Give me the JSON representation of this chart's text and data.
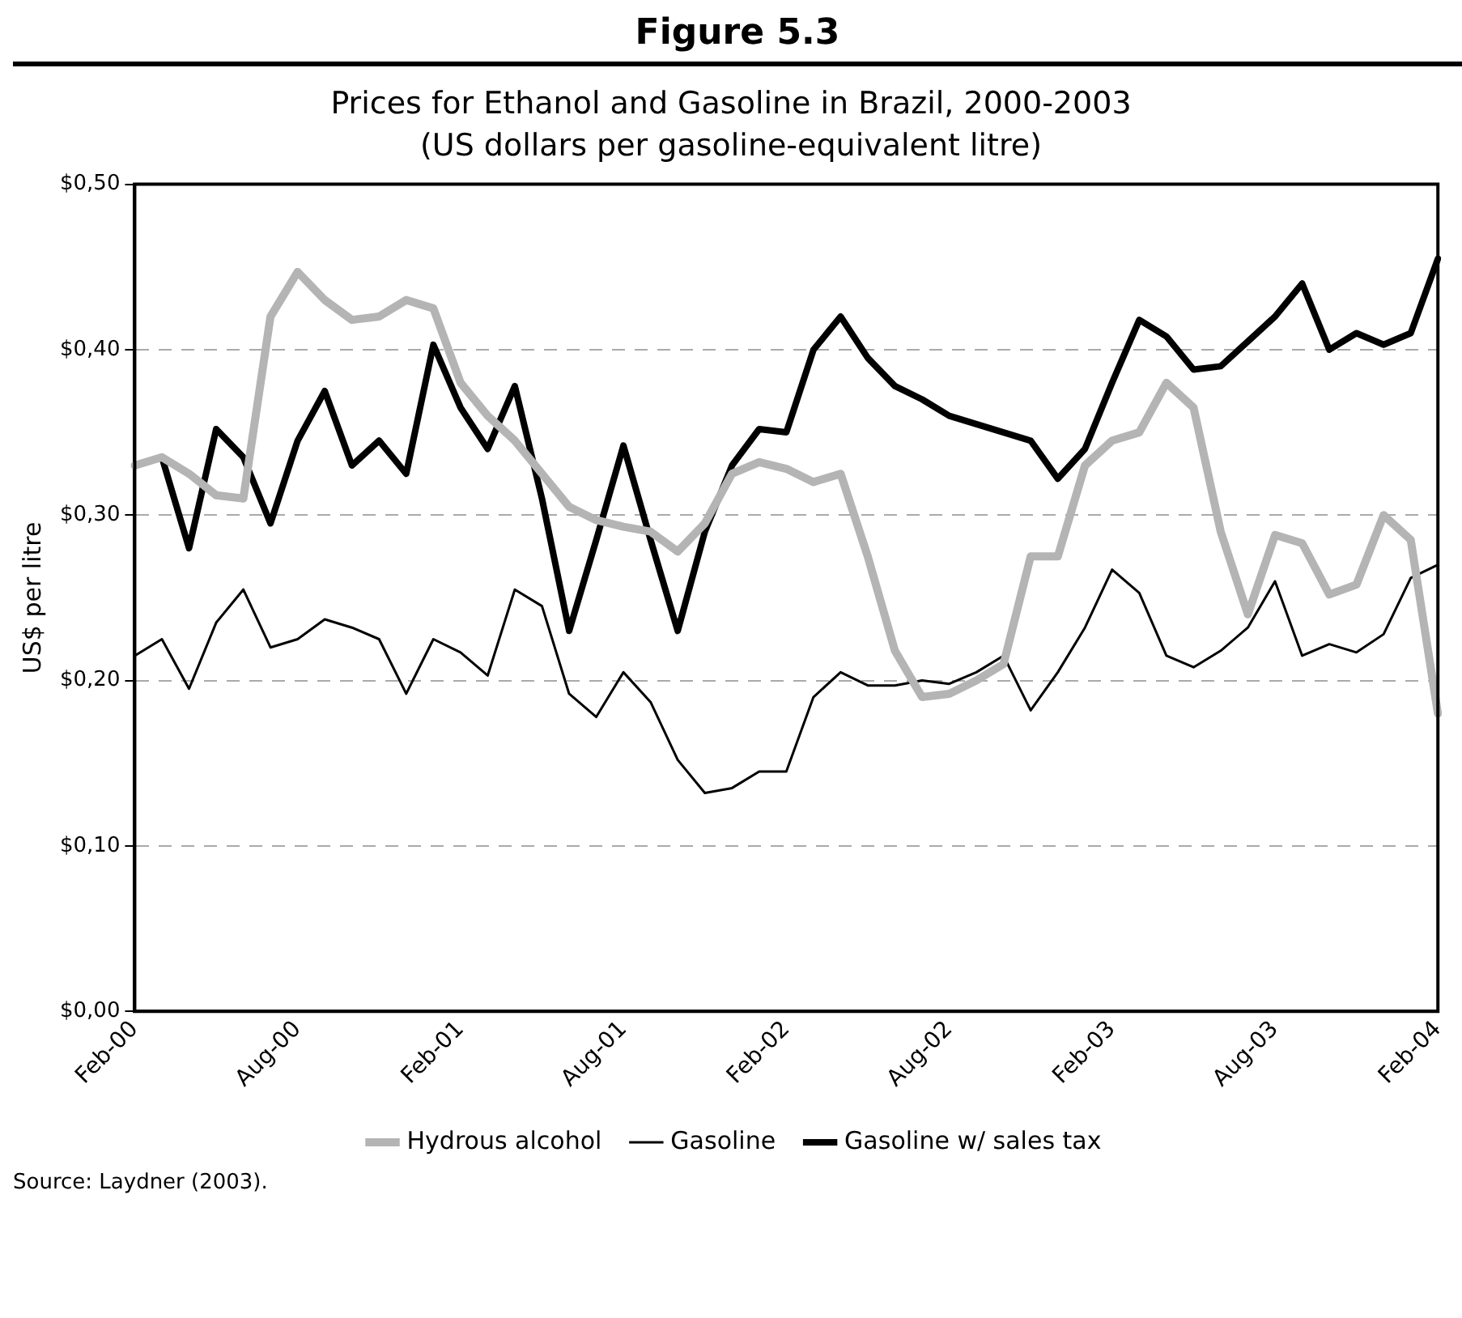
{
  "chart_data": {
    "type": "line",
    "title": "Figure 5.3",
    "subtitle": "Prices for Ethanol and Gasoline in Brazil, 2000-2003\n(US dollars per gasoline-equivalent litre)",
    "ylabel": "US$ per litre",
    "categories": [
      "Feb-00",
      null,
      null,
      null,
      null,
      null,
      "Aug-00",
      null,
      null,
      null,
      null,
      null,
      "Feb-01",
      null,
      null,
      null,
      null,
      null,
      "Aug-01",
      null,
      null,
      null,
      null,
      null,
      "Feb-02",
      null,
      null,
      null,
      null,
      null,
      "Aug-02",
      null,
      null,
      null,
      null,
      null,
      "Feb-03",
      null,
      null,
      null,
      null,
      null,
      "Aug-03",
      null,
      null,
      null,
      null,
      null,
      "Feb-04"
    ],
    "series": [
      {
        "name": "Hydrous alcohol",
        "color": "#b4b4b4",
        "values": [
          0.33,
          0.335,
          0.325,
          0.312,
          0.31,
          0.42,
          0.447,
          0.43,
          0.418,
          0.42,
          0.43,
          0.425,
          0.38,
          0.36,
          0.345,
          0.325,
          0.305,
          0.297,
          0.293,
          0.29,
          0.278,
          0.295,
          0.325,
          0.332,
          0.328,
          0.32,
          0.325,
          0.275,
          0.218,
          0.19,
          0.192,
          0.2,
          0.21,
          0.275,
          0.275,
          0.33,
          0.345,
          0.35,
          0.38,
          0.365,
          0.29,
          0.24,
          0.288,
          0.283,
          0.252,
          0.258,
          0.3,
          0.285,
          0.18
        ]
      },
      {
        "name": "Gasoline",
        "color": "#000000",
        "values": [
          0.215,
          0.225,
          0.195,
          0.235,
          0.255,
          0.22,
          0.225,
          0.237,
          0.232,
          0.225,
          0.192,
          0.225,
          0.217,
          0.203,
          0.255,
          0.245,
          0.192,
          0.178,
          0.205,
          0.187,
          0.152,
          0.132,
          0.135,
          0.145,
          0.145,
          0.19,
          0.205,
          0.197,
          0.197,
          0.2,
          0.198,
          0.205,
          0.215,
          0.182,
          0.205,
          0.232,
          0.267,
          0.253,
          0.215,
          0.208,
          0.218,
          0.232,
          0.26,
          0.215,
          0.222,
          0.217,
          0.228,
          0.262,
          0.27
        ]
      },
      {
        "name": "Gasoline w/ sales tax",
        "color": "#000000",
        "values": [
          0.33,
          0.335,
          0.28,
          0.352,
          0.335,
          0.295,
          0.345,
          0.375,
          0.33,
          0.345,
          0.325,
          0.403,
          0.365,
          0.34,
          0.378,
          0.31,
          0.23,
          0.285,
          0.342,
          0.285,
          0.23,
          0.29,
          0.33,
          0.352,
          0.35,
          0.4,
          0.42,
          0.395,
          0.378,
          0.37,
          0.36,
          0.355,
          0.35,
          0.345,
          0.322,
          0.34,
          0.38,
          0.418,
          0.408,
          0.388,
          0.39,
          0.405,
          0.42,
          0.44,
          0.4,
          0.41,
          0.403,
          0.41,
          0.455
        ]
      }
    ],
    "ylim": [
      0,
      0.5
    ],
    "yticks": [
      {
        "value": 0,
        "label": "$0,00"
      },
      {
        "value": 0.1,
        "label": "$0,10"
      },
      {
        "value": 0.2,
        "label": "$0,20"
      },
      {
        "value": 0.3,
        "label": "$0,30"
      },
      {
        "value": 0.4,
        "label": "$0,40"
      },
      {
        "value": 0.5,
        "label": "$0,50"
      }
    ],
    "grid": "y",
    "legend": "bottom",
    "marker": "none",
    "line_style": "solid",
    "annotations": [
      "Source: Laydner (2003)."
    ]
  }
}
